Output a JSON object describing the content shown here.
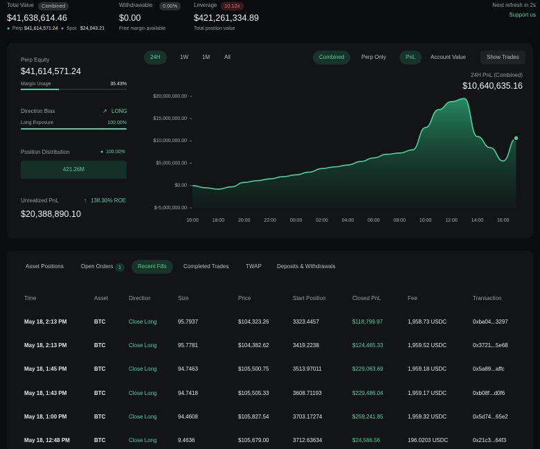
{
  "header": {
    "total_value_label": "Total Value",
    "total_value_badge": "Combined",
    "total_value": "$41,638,614.46",
    "perp_label": "Perp",
    "perp_value": "$41,614,571.24",
    "spot_label": "Spot",
    "spot_value": "$24,043.21",
    "withdrawable_label": "Withdrawable",
    "withdrawable_badge": "0.00%",
    "withdrawable_value": "$0.00",
    "withdrawable_sub": "Free margin available",
    "leverage_label": "Leverage",
    "leverage_badge": "10.12x",
    "leverage_value": "$421,261,334.89",
    "leverage_sub": "Total position value",
    "refresh": "Next refresh in 2s",
    "support": "Support us"
  },
  "sidebar": {
    "perp_equity_label": "Perp Equity",
    "perp_equity": "$41,614,571.24",
    "margin_usage_label": "Margin Usage",
    "margin_usage": "35.43%",
    "direction_bias_label": "Direction Bias",
    "direction_bias": "LONG",
    "long_exposure_label": "Long Exposure",
    "long_exposure": "100.00%",
    "position_distribution_label": "Position Distribution",
    "position_distribution_pct": "100.00%",
    "position_distribution_value": "421.26M",
    "unrealized_pnl_label": "Unrealized PnL",
    "roe": "138.30% ROE",
    "unrealized_pnl": "$20,388,890.10"
  },
  "chart_controls": {
    "ranges": [
      "24H",
      "1W",
      "1M",
      "All"
    ],
    "modes": [
      "Combined",
      "Perp Only"
    ],
    "metrics": [
      "PnL",
      "Account Value"
    ],
    "show_trades": "Show Trades"
  },
  "chart_data": {
    "type": "area",
    "title": "24H PnL (Combined)",
    "subtitle": "$10,640,635.16",
    "color": "#4fd1a0",
    "categories": [
      "16:00",
      null,
      "18:00",
      null,
      "20:00",
      null,
      "22:00",
      null,
      "00:00",
      null,
      "02:00",
      null,
      "04:00",
      null,
      "06:00",
      null,
      "08:00",
      null,
      "10:00",
      null,
      "12:00",
      null,
      "14:00",
      null,
      "16:00",
      null
    ],
    "values": [
      0,
      -500000,
      -800000,
      -300000,
      700000,
      1100000,
      1500000,
      2000000,
      2400000,
      3000000,
      3800000,
      4200000,
      4600000,
      5400000,
      6200000,
      7000000,
      7300000,
      8000000,
      13000000,
      17000000,
      18800000,
      19500000,
      11000000,
      8500000,
      5500000,
      10640635.16
    ],
    "ylim": [
      -5000000,
      20000000
    ],
    "yticks": [
      {
        "value": -5000000,
        "label": "$-5,000,000.00"
      },
      {
        "value": 0,
        "label": "$0.00"
      },
      {
        "value": 5000000,
        "label": "$5,000,000.00"
      },
      {
        "value": 10000000,
        "label": "$10,000,000.00"
      },
      {
        "value": 15000000,
        "label": "$15,000,000.00"
      },
      {
        "value": 20000000,
        "label": "$20,000,000.00"
      }
    ]
  },
  "tabs": {
    "items": [
      "Asset Positions",
      "Open Orders",
      "Recent Fills",
      "Completed Trades",
      "TWAP",
      "Deposits & Withdrawals"
    ],
    "open_orders_count": "1"
  },
  "table": {
    "columns": [
      "Time",
      "Asset",
      "Direction",
      "Size",
      "Price",
      "Start Position",
      "Closed PnL",
      "Fee",
      "Transaction"
    ],
    "rows": [
      [
        "May 18, 2:13 PM",
        "BTC",
        "Close Long",
        "95.7937",
        "$104,323.26",
        "3323.4457",
        "$118,799.97",
        "1,958.73 USDC",
        "0xba04...3297"
      ],
      [
        "May 18, 2:13 PM",
        "BTC",
        "Close Long",
        "95.7781",
        "$104,382.62",
        "3419.2238",
        "$124,465.33",
        "1,959.52 USDC",
        "0x3721...5e68"
      ],
      [
        "May 18, 1:45 PM",
        "BTC",
        "Close Long",
        "94.7463",
        "$105,500.75",
        "3513.97011",
        "$229,063.69",
        "1,959.18 USDC",
        "0x5a89...affc"
      ],
      [
        "May 18, 1:43 PM",
        "BTC",
        "Close Long",
        "94.7418",
        "$105,505.33",
        "3608.71193",
        "$229,486.04",
        "1,959.17 USDC",
        "0xb08f...d0f6"
      ],
      [
        "May 18, 1:00 PM",
        "BTC",
        "Close Long",
        "94.4608",
        "$105,827.54",
        "3703.17274",
        "$259,241.85",
        "1,959.32 USDC",
        "0x5d74...65e2"
      ],
      [
        "May 18, 12:48 PM",
        "BTC",
        "Close Long",
        "9.4636",
        "$105,679.00",
        "3712.63634",
        "$24,566.56",
        "196.0203 USDC",
        "0x21c3...64f3"
      ]
    ]
  }
}
